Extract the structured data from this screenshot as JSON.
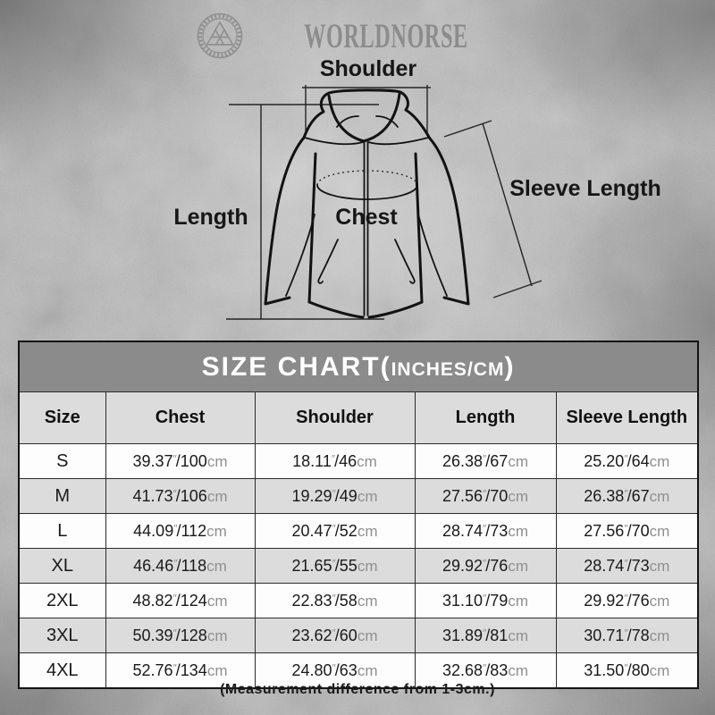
{
  "brand": {
    "name": "WORLDNORSE",
    "logo": "valknut-icon"
  },
  "diagram": {
    "shoulder_label": "Shoulder",
    "length_label": "Length",
    "chest_label": "Chest",
    "sleeve_length_label": "Sleeve Length"
  },
  "size_chart": {
    "title_main": "SIZE CHART(",
    "title_unit": "INCHES/CM",
    "title_close": ")",
    "columns": [
      "Size",
      "Chest",
      "Shoulder",
      "Length",
      "Sleeve Length"
    ],
    "units": {
      "inch_mark": "″",
      "cm_label": "cm"
    },
    "rows": [
      {
        "size": "S",
        "values": [
          {
            "in": "39.37",
            "cm": "100"
          },
          {
            "in": "18.11",
            "cm": "46"
          },
          {
            "in": "26.38",
            "cm": "67"
          },
          {
            "in": "25.20",
            "cm": "64"
          }
        ]
      },
      {
        "size": "M",
        "values": [
          {
            "in": "41.73",
            "cm": "106"
          },
          {
            "in": "19.29",
            "cm": "49"
          },
          {
            "in": "27.56",
            "cm": "70"
          },
          {
            "in": "26.38",
            "cm": "67"
          }
        ]
      },
      {
        "size": "L",
        "values": [
          {
            "in": "44.09",
            "cm": "112"
          },
          {
            "in": "20.47",
            "cm": "52"
          },
          {
            "in": "28.74",
            "cm": "73"
          },
          {
            "in": "27.56",
            "cm": "70"
          }
        ]
      },
      {
        "size": "XL",
        "values": [
          {
            "in": "46.46",
            "cm": "118"
          },
          {
            "in": "21.65",
            "cm": "55"
          },
          {
            "in": "29.92",
            "cm": "76"
          },
          {
            "in": "28.74",
            "cm": "73"
          }
        ]
      },
      {
        "size": "2XL",
        "values": [
          {
            "in": "48.82",
            "cm": "124"
          },
          {
            "in": "22.83",
            "cm": "58"
          },
          {
            "in": "31.10",
            "cm": "79"
          },
          {
            "in": "29.92",
            "cm": "76"
          }
        ]
      },
      {
        "size": "3XL",
        "values": [
          {
            "in": "50.39",
            "cm": "128"
          },
          {
            "in": "23.62",
            "cm": "60"
          },
          {
            "in": "31.89",
            "cm": "81"
          },
          {
            "in": "30.71",
            "cm": "78"
          }
        ]
      },
      {
        "size": "4XL",
        "values": [
          {
            "in": "52.76",
            "cm": "134"
          },
          {
            "in": "24.80",
            "cm": "63"
          },
          {
            "in": "32.68",
            "cm": "83"
          },
          {
            "in": "31.50",
            "cm": "80"
          }
        ]
      }
    ]
  },
  "footnote": "(Measurement difference from 1-3cm.)",
  "colors": {
    "table_title_bg": "#8b8b8b",
    "header_row_bg": "#dcdcdc",
    "row_bg": "#fdfdfd",
    "row_alt_bg": "#dcdcdc",
    "border": "#141414",
    "muted_unit": "#8f8f8f",
    "brand_gray": "#8c8c8c"
  },
  "chart_data": {
    "type": "table",
    "title": "SIZE CHART(INCHES/CM)",
    "columns": [
      "Size",
      "Chest",
      "Shoulder",
      "Length",
      "Sleeve Length"
    ],
    "rows": [
      {
        "size": "S",
        "chest_in": 39.37,
        "chest_cm": 100,
        "shoulder_in": 18.11,
        "shoulder_cm": 46,
        "length_in": 26.38,
        "length_cm": 67,
        "sleeve_in": 25.2,
        "sleeve_cm": 64
      },
      {
        "size": "M",
        "chest_in": 41.73,
        "chest_cm": 106,
        "shoulder_in": 19.29,
        "shoulder_cm": 49,
        "length_in": 27.56,
        "length_cm": 70,
        "sleeve_in": 26.38,
        "sleeve_cm": 67
      },
      {
        "size": "L",
        "chest_in": 44.09,
        "chest_cm": 112,
        "shoulder_in": 20.47,
        "shoulder_cm": 52,
        "length_in": 28.74,
        "length_cm": 73,
        "sleeve_in": 27.56,
        "sleeve_cm": 70
      },
      {
        "size": "XL",
        "chest_in": 46.46,
        "chest_cm": 118,
        "shoulder_in": 21.65,
        "shoulder_cm": 55,
        "length_in": 29.92,
        "length_cm": 76,
        "sleeve_in": 28.74,
        "sleeve_cm": 73
      },
      {
        "size": "2XL",
        "chest_in": 48.82,
        "chest_cm": 124,
        "shoulder_in": 22.83,
        "shoulder_cm": 58,
        "length_in": 31.1,
        "length_cm": 79,
        "sleeve_in": 29.92,
        "sleeve_cm": 76
      },
      {
        "size": "3XL",
        "chest_in": 50.39,
        "chest_cm": 128,
        "shoulder_in": 23.62,
        "shoulder_cm": 60,
        "length_in": 31.89,
        "length_cm": 81,
        "sleeve_in": 30.71,
        "sleeve_cm": 78
      },
      {
        "size": "4XL",
        "chest_in": 52.76,
        "chest_cm": 134,
        "shoulder_in": 24.8,
        "shoulder_cm": 63,
        "length_in": 32.68,
        "length_cm": 83,
        "sleeve_in": 31.5,
        "sleeve_cm": 80
      }
    ],
    "note": "(Measurement difference from 1-3cm.)"
  }
}
